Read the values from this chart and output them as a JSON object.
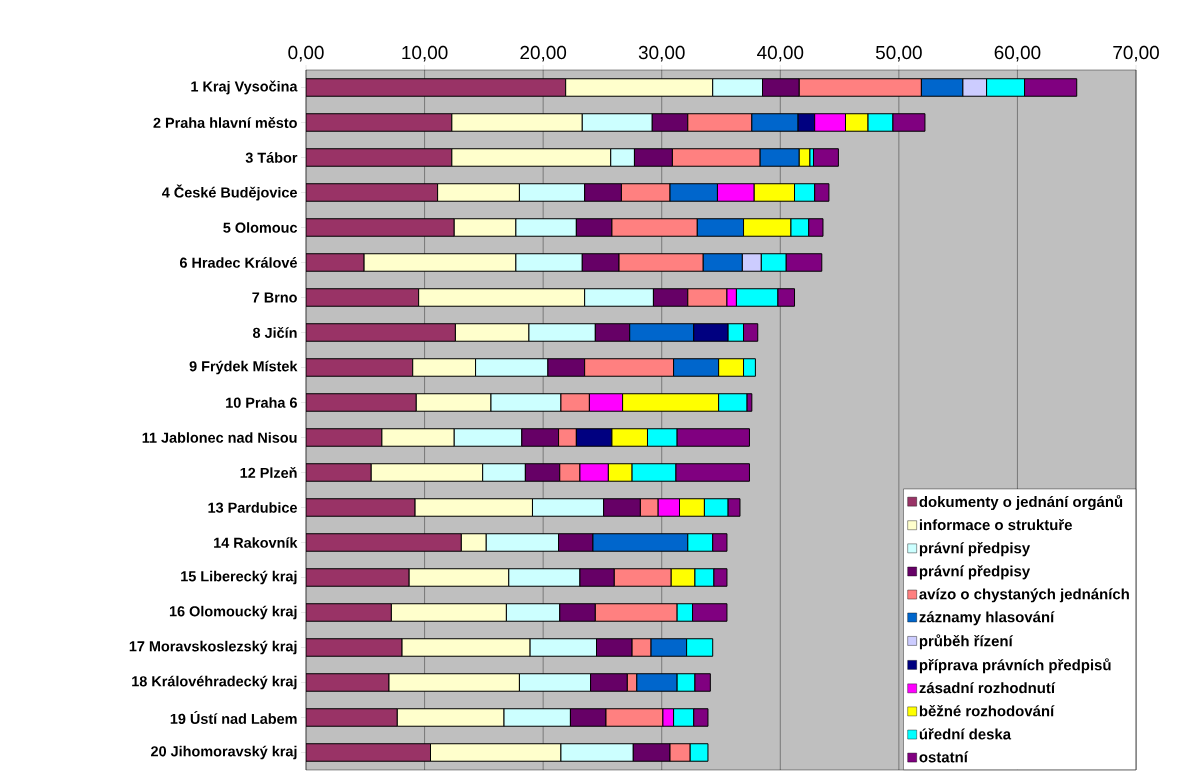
{
  "chart_data": {
    "type": "bar",
    "orientation": "horizontal",
    "stacked": true,
    "categories": [
      "1 Kraj Vysočina",
      "2 Praha hlavní město",
      "3 Tábor",
      "4 České Budějovice",
      "5 Olomouc",
      "6 Hradec Králové",
      "7 Brno",
      "8 Jičín",
      "9 Frýdek Místek",
      "10 Praha 6",
      "11 Jablonec nad Nisou",
      "12 Plzeň",
      "13 Pardubice",
      "14 Rakovník",
      "15 Liberecký kraj",
      "16 Olomoucký kraj",
      "17 Moravskoslezský kraj",
      "18 Královéhradecký kraj",
      "19 Ústí nad Labem",
      "20 Jihomoravský kraj"
    ],
    "series": [
      {
        "name": "dokumenty o jednání orgánů",
        "color": "#993366",
        "values": [
          21.9,
          12.3,
          12.3,
          11.1,
          12.5,
          4.9,
          9.5,
          12.6,
          9.0,
          9.3,
          6.4,
          5.5,
          9.2,
          13.1,
          8.7,
          7.2,
          8.1,
          7.0,
          7.7,
          10.5
        ]
      },
      {
        "name": "informace o struktuře",
        "color": "#ffffcc",
        "values": [
          12.4,
          11.0,
          13.4,
          6.9,
          5.2,
          12.8,
          14.0,
          6.2,
          5.3,
          6.3,
          6.1,
          9.4,
          9.9,
          2.1,
          8.4,
          9.7,
          10.8,
          11.0,
          9.0,
          11.0
        ]
      },
      {
        "name": "právní předpisy",
        "color": "#ccffff",
        "values": [
          4.2,
          5.9,
          2.0,
          5.5,
          5.1,
          5.6,
          5.8,
          5.6,
          6.1,
          5.9,
          5.7,
          3.6,
          6.0,
          6.1,
          6.0,
          4.5,
          5.6,
          6.0,
          5.6,
          6.1
        ]
      },
      {
        "name": "právní předpisy",
        "color": "#660066",
        "values": [
          3.1,
          3.0,
          3.2,
          3.1,
          3.0,
          3.1,
          2.9,
          2.9,
          3.1,
          null,
          3.1,
          2.9,
          3.1,
          2.9,
          2.9,
          3.0,
          3.0,
          3.1,
          3.0,
          3.1
        ]
      },
      {
        "name": "avízo o chystaných jednáních",
        "color": "#ff8080",
        "values": [
          10.3,
          5.4,
          7.4,
          4.1,
          7.2,
          7.1,
          3.3,
          null,
          7.5,
          2.4,
          1.5,
          1.7,
          1.5,
          null,
          4.8,
          6.9,
          1.6,
          0.8,
          4.8,
          1.7
        ]
      },
      {
        "name": "záznamy hlasování",
        "color": "#0066cc",
        "values": [
          3.5,
          3.9,
          3.3,
          4.0,
          3.9,
          3.3,
          null,
          5.4,
          3.8,
          null,
          null,
          null,
          null,
          8.0,
          null,
          null,
          3.0,
          3.4,
          null,
          null
        ]
      },
      {
        "name": "průběh řízení",
        "color": "#ccccff",
        "values": [
          2.0,
          null,
          null,
          null,
          null,
          1.6,
          null,
          null,
          null,
          null,
          null,
          null,
          null,
          null,
          null,
          null,
          null,
          null,
          null,
          null
        ]
      },
      {
        "name": "příprava právních předpisů",
        "color": "#000080",
        "values": [
          null,
          1.4,
          null,
          null,
          null,
          null,
          null,
          2.9,
          null,
          null,
          3.0,
          null,
          null,
          null,
          null,
          null,
          null,
          null,
          null,
          null
        ]
      },
      {
        "name": "zásadní rozhodnutí",
        "color": "#ff00ff",
        "values": [
          null,
          2.6,
          null,
          3.1,
          null,
          null,
          0.8,
          null,
          null,
          2.8,
          null,
          2.4,
          1.8,
          null,
          null,
          null,
          null,
          null,
          0.9,
          null
        ]
      },
      {
        "name": "běžné rozhodování",
        "color": "#ffff00",
        "values": [
          null,
          1.9,
          0.9,
          3.4,
          4.0,
          null,
          null,
          null,
          2.1,
          8.1,
          3.0,
          2.0,
          2.1,
          null,
          2.0,
          null,
          null,
          null,
          null,
          null
        ]
      },
      {
        "name": "úřední deska",
        "color": "#00ffff",
        "values": [
          3.2,
          2.1,
          0.3,
          1.7,
          1.5,
          2.1,
          3.5,
          1.3,
          1.0,
          2.4,
          2.5,
          3.7,
          2.0,
          2.1,
          1.6,
          1.3,
          2.2,
          1.5,
          1.7,
          1.5
        ]
      },
      {
        "name": "ostatní",
        "color": "#800080",
        "values": [
          4.4,
          2.7,
          2.1,
          1.2,
          1.2,
          3.0,
          1.4,
          1.2,
          null,
          0.4,
          6.1,
          6.2,
          1.0,
          1.2,
          1.1,
          2.9,
          null,
          1.3,
          1.2,
          null
        ]
      }
    ],
    "xlim": [
      0,
      70
    ],
    "xticks": [
      {
        "value": 0,
        "label": "0,00"
      },
      {
        "value": 10,
        "label": "10,00"
      },
      {
        "value": 20,
        "label": "20,00"
      },
      {
        "value": 30,
        "label": "30,00"
      },
      {
        "value": 40,
        "label": "40,00"
      },
      {
        "value": 50,
        "label": "50,00"
      },
      {
        "value": 60,
        "label": "60,00"
      },
      {
        "value": 70,
        "label": "70,00"
      }
    ],
    "grid": "x",
    "legend": "bottom right"
  }
}
